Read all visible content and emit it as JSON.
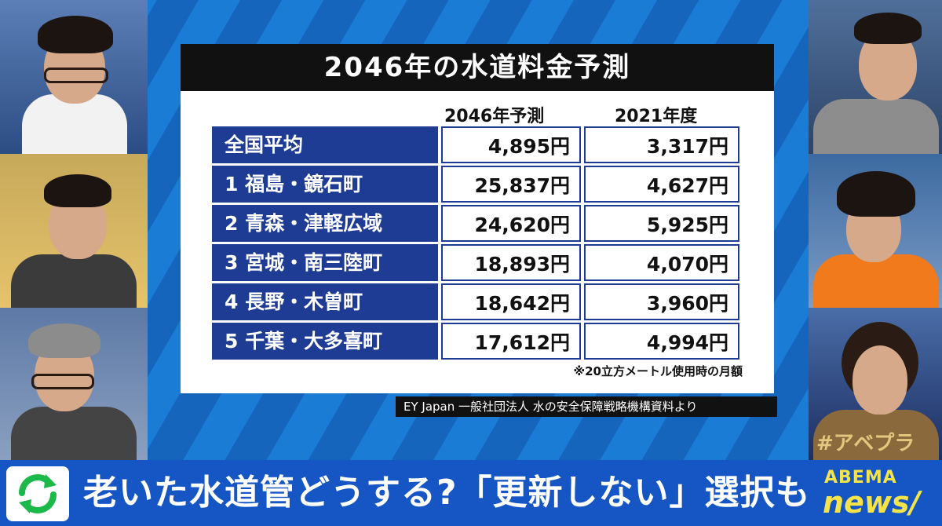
{
  "title": "2046年の水道料金予測",
  "columns": [
    "2046年予測",
    "2021年度"
  ],
  "rows": [
    {
      "label": "全国平均",
      "v2046": "4,895円",
      "v2021": "3,317円"
    },
    {
      "label": "1 福島・鏡石町",
      "v2046": "25,837円",
      "v2021": "4,627円"
    },
    {
      "label": "2 青森・津軽広域",
      "v2046": "24,620円",
      "v2021": "5,925円"
    },
    {
      "label": "3 宮城・南三陸町",
      "v2046": "18,893円",
      "v2021": "4,070円"
    },
    {
      "label": "4 長野・木曽町",
      "v2046": "18,642円",
      "v2021": "3,960円"
    },
    {
      "label": "5 千葉・大多喜町",
      "v2046": "17,612円",
      "v2021": "4,994円"
    }
  ],
  "footnote": "※20立方メートル使用時の月額",
  "source": "EY Japan 一般社団法人 水の安全保障戦略機構資料より",
  "headline": "老いた水道管どうする?「更新しない」選択も",
  "brand": {
    "top": "ABEMA",
    "bottom": "news/"
  },
  "hashtag": "#アベプラ",
  "colors": {
    "stage_blue": "#1b7cd6",
    "row_label_blue": "#1f3c94",
    "bar_blue": "#1656c4",
    "brand_yellow": "#f4e44a"
  }
}
